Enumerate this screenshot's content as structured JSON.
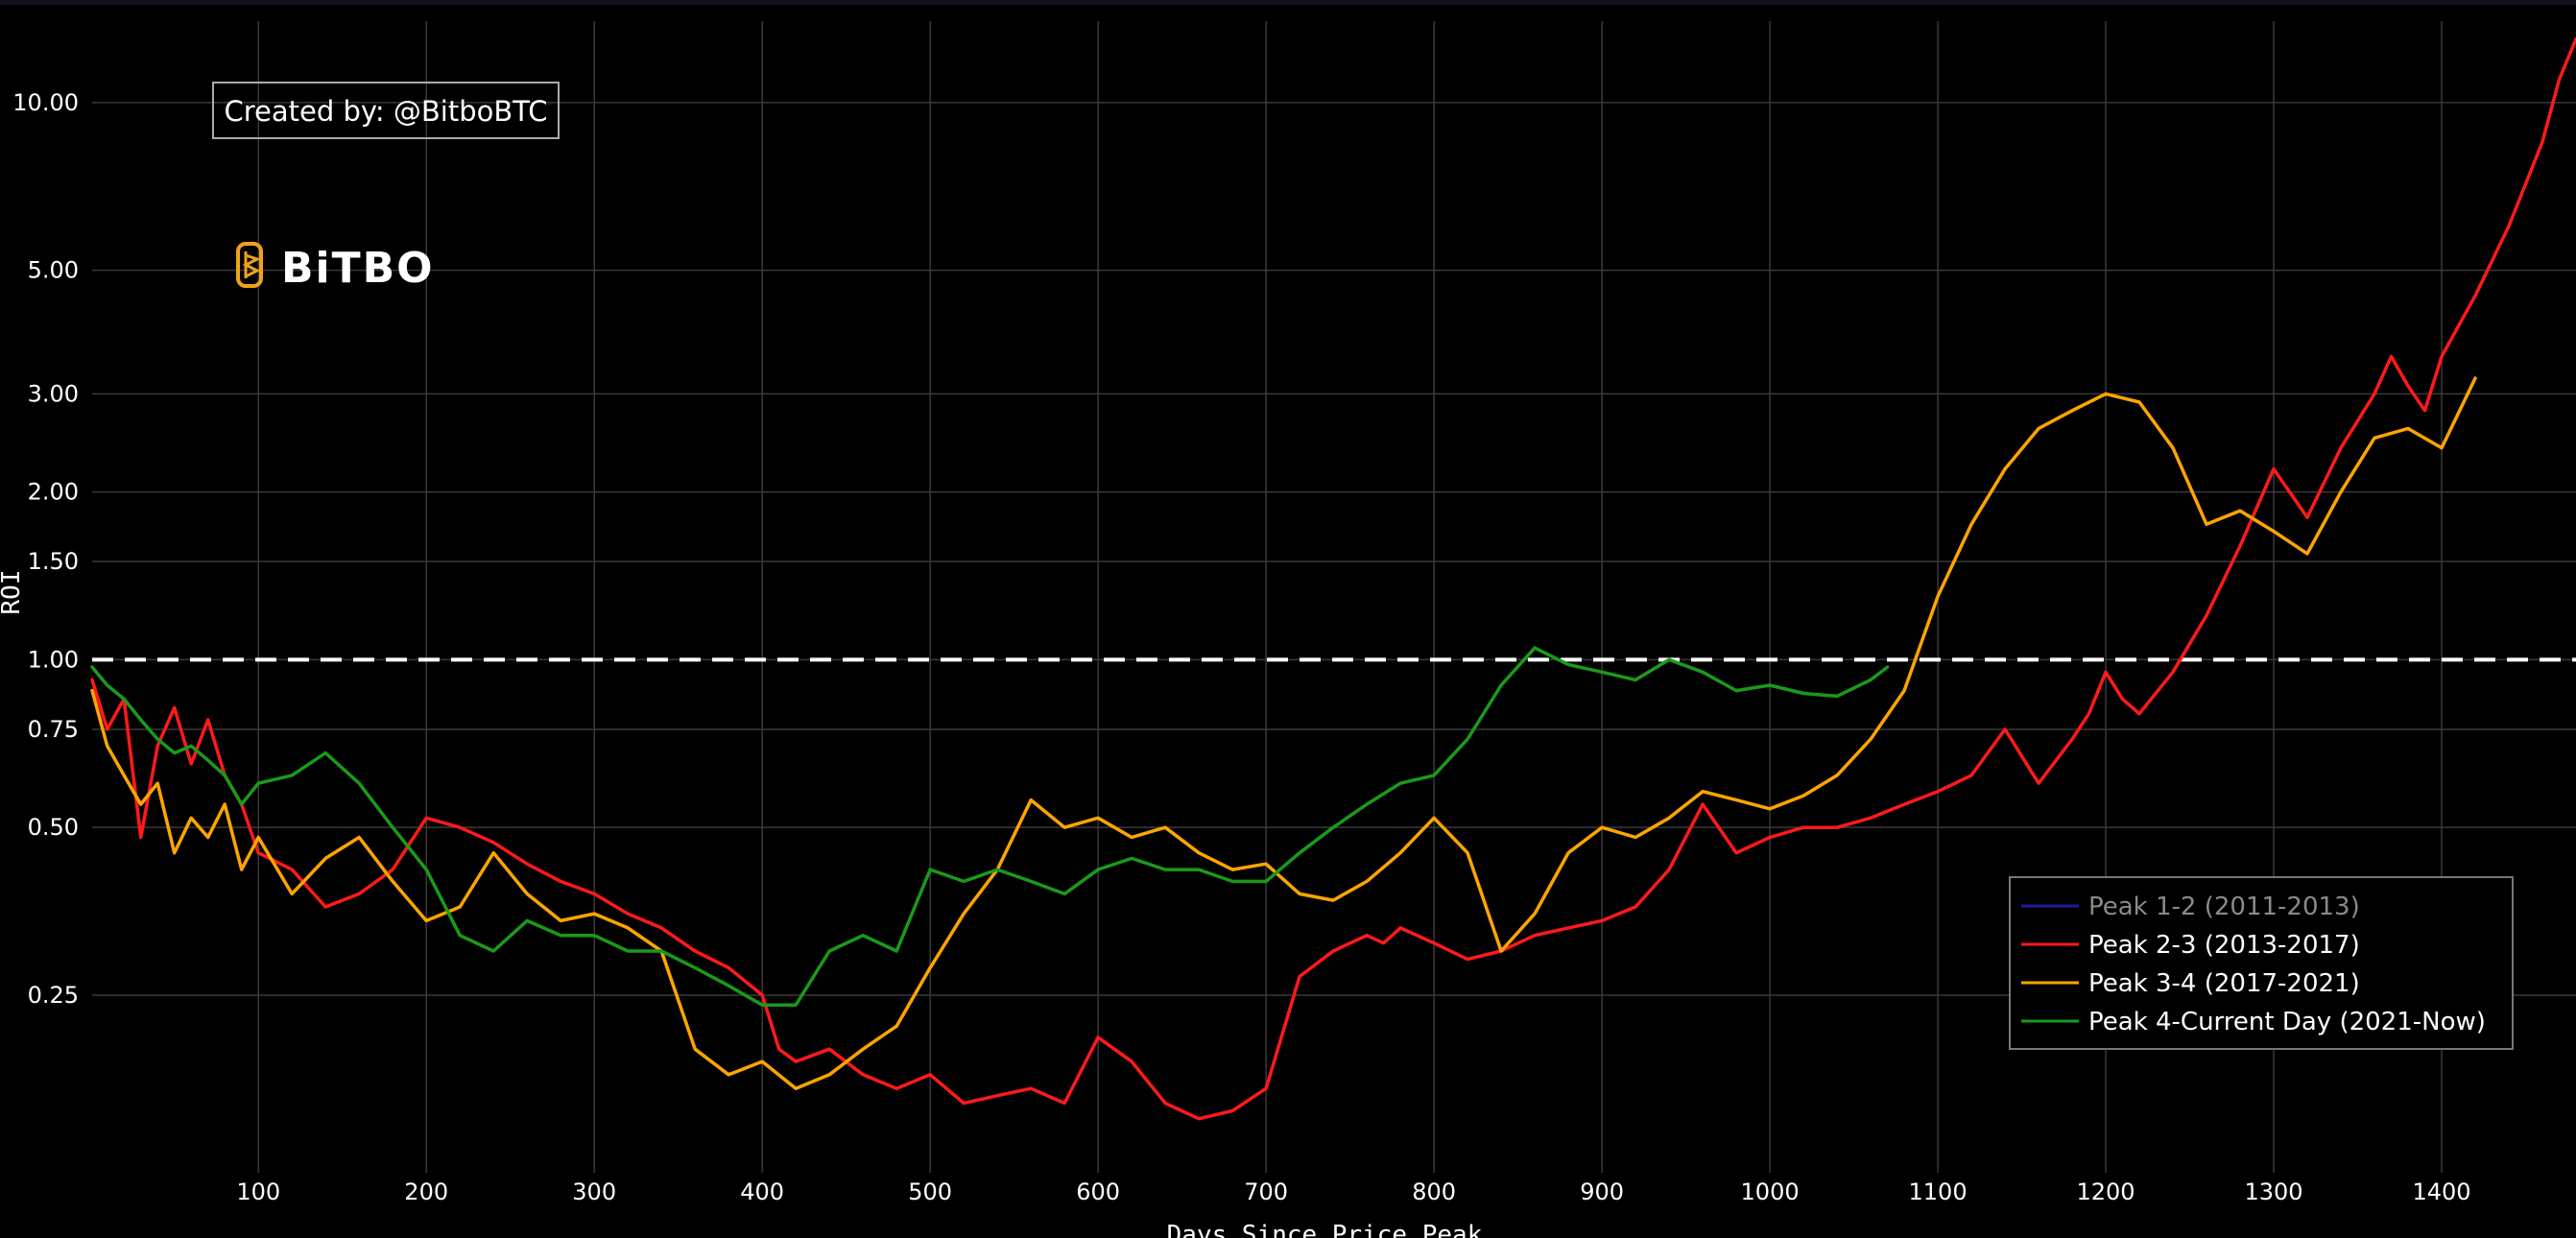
{
  "credit": "Created by: @BitboBTC",
  "logo_text": "BiTBO",
  "chart_data": {
    "type": "line",
    "xlabel": "Days Since Price Peak",
    "ylabel": "ROI",
    "x_ticks": [
      100,
      200,
      300,
      400,
      500,
      600,
      700,
      800,
      900,
      1000,
      1100,
      1200,
      1300,
      1400
    ],
    "y_ticks": [
      {
        "value": 0.25,
        "label": "0.25"
      },
      {
        "value": 0.5,
        "label": "0.50"
      },
      {
        "value": 0.75,
        "label": "0.75"
      },
      {
        "value": 1.0,
        "label": "1.00"
      },
      {
        "value": 1.5,
        "label": "1.50"
      },
      {
        "value": 2.0,
        "label": "2.00"
      },
      {
        "value": 3.0,
        "label": "3.00"
      },
      {
        "value": 5.0,
        "label": "5.00"
      },
      {
        "value": 10.0,
        "label": "10.00"
      }
    ],
    "xlim": [
      1,
      1480
    ],
    "ylim": [
      0.12,
      14
    ],
    "yscale": "log",
    "grid": true,
    "reference_line": {
      "y": 1.0,
      "style": "dashed",
      "color": "#ffffff"
    },
    "legend_position": "bottom-right",
    "series": [
      {
        "name": "Peak 1-2 (2011-2013)",
        "color": "#1c1ca0",
        "hidden": true,
        "x": [],
        "y": []
      },
      {
        "name": "Peak 2-3 (2013-2017)",
        "color": "#ff1a1a",
        "x": [
          1,
          10,
          20,
          30,
          40,
          50,
          60,
          70,
          80,
          90,
          100,
          120,
          140,
          160,
          180,
          200,
          220,
          240,
          260,
          280,
          300,
          320,
          340,
          360,
          380,
          400,
          410,
          420,
          440,
          460,
          480,
          500,
          520,
          540,
          560,
          580,
          600,
          620,
          640,
          660,
          680,
          700,
          720,
          740,
          760,
          770,
          780,
          800,
          820,
          840,
          860,
          880,
          900,
          920,
          940,
          960,
          980,
          1000,
          1020,
          1040,
          1060,
          1080,
          1100,
          1120,
          1140,
          1160,
          1180,
          1190,
          1200,
          1210,
          1220,
          1240,
          1260,
          1280,
          1300,
          1320,
          1340,
          1360,
          1370,
          1380,
          1390,
          1400,
          1420,
          1440,
          1460,
          1470,
          1480
        ],
        "y": [
          0.92,
          0.75,
          0.85,
          0.48,
          0.7,
          0.82,
          0.65,
          0.78,
          0.62,
          0.55,
          0.45,
          0.42,
          0.36,
          0.38,
          0.42,
          0.52,
          0.5,
          0.47,
          0.43,
          0.4,
          0.38,
          0.35,
          0.33,
          0.3,
          0.28,
          0.25,
          0.2,
          0.19,
          0.2,
          0.18,
          0.17,
          0.18,
          0.16,
          0.165,
          0.17,
          0.16,
          0.21,
          0.19,
          0.16,
          0.15,
          0.155,
          0.17,
          0.27,
          0.3,
          0.32,
          0.31,
          0.33,
          0.31,
          0.29,
          0.3,
          0.32,
          0.33,
          0.34,
          0.36,
          0.42,
          0.55,
          0.45,
          0.48,
          0.5,
          0.5,
          0.52,
          0.55,
          0.58,
          0.62,
          0.75,
          0.6,
          0.72,
          0.8,
          0.95,
          0.85,
          0.8,
          0.95,
          1.2,
          1.6,
          2.2,
          1.8,
          2.4,
          3.0,
          3.5,
          3.1,
          2.8,
          3.5,
          4.5,
          6.0,
          8.5,
          11.0,
          13.0
        ]
      },
      {
        "name": "Peak 3-4 (2017-2021)",
        "color": "#ffa500",
        "x": [
          1,
          10,
          20,
          30,
          40,
          50,
          60,
          70,
          80,
          90,
          100,
          120,
          140,
          160,
          180,
          200,
          220,
          240,
          260,
          280,
          300,
          320,
          340,
          360,
          380,
          400,
          420,
          440,
          460,
          480,
          500,
          520,
          540,
          560,
          580,
          600,
          620,
          640,
          660,
          680,
          700,
          720,
          740,
          760,
          780,
          800,
          820,
          840,
          860,
          880,
          900,
          920,
          940,
          960,
          980,
          1000,
          1020,
          1040,
          1060,
          1080,
          1100,
          1120,
          1140,
          1160,
          1180,
          1200,
          1220,
          1240,
          1260,
          1280,
          1300,
          1320,
          1340,
          1360,
          1380,
          1400,
          1420
        ],
        "y": [
          0.88,
          0.7,
          0.62,
          0.55,
          0.6,
          0.45,
          0.52,
          0.48,
          0.55,
          0.42,
          0.48,
          0.38,
          0.44,
          0.48,
          0.4,
          0.34,
          0.36,
          0.45,
          0.38,
          0.34,
          0.35,
          0.33,
          0.3,
          0.2,
          0.18,
          0.19,
          0.17,
          0.18,
          0.2,
          0.22,
          0.28,
          0.35,
          0.42,
          0.56,
          0.5,
          0.52,
          0.48,
          0.5,
          0.45,
          0.42,
          0.43,
          0.38,
          0.37,
          0.4,
          0.45,
          0.52,
          0.45,
          0.3,
          0.35,
          0.45,
          0.5,
          0.48,
          0.52,
          0.58,
          0.56,
          0.54,
          0.57,
          0.62,
          0.72,
          0.88,
          1.3,
          1.75,
          2.2,
          2.6,
          2.8,
          3.0,
          2.9,
          2.4,
          1.75,
          1.85,
          1.7,
          1.55,
          2.0,
          2.5,
          2.6,
          2.4,
          3.2
        ]
      },
      {
        "name": "Peak 4-Current Day (2021-Now)",
        "color": "#1a9a1a",
        "x": [
          1,
          10,
          20,
          30,
          40,
          50,
          60,
          70,
          80,
          90,
          100,
          120,
          140,
          160,
          180,
          200,
          220,
          240,
          260,
          280,
          300,
          320,
          340,
          360,
          380,
          400,
          420,
          440,
          460,
          480,
          500,
          520,
          540,
          560,
          580,
          600,
          620,
          640,
          660,
          680,
          700,
          720,
          740,
          760,
          780,
          800,
          820,
          840,
          860,
          880,
          900,
          920,
          940,
          960,
          980,
          1000,
          1020,
          1040,
          1060,
          1070
        ],
        "y": [
          0.97,
          0.9,
          0.85,
          0.78,
          0.72,
          0.68,
          0.7,
          0.66,
          0.62,
          0.55,
          0.6,
          0.62,
          0.68,
          0.6,
          0.5,
          0.42,
          0.32,
          0.3,
          0.34,
          0.32,
          0.32,
          0.3,
          0.3,
          0.28,
          0.26,
          0.24,
          0.24,
          0.3,
          0.32,
          0.3,
          0.42,
          0.4,
          0.42,
          0.4,
          0.38,
          0.42,
          0.44,
          0.42,
          0.42,
          0.4,
          0.4,
          0.45,
          0.5,
          0.55,
          0.6,
          0.62,
          0.72,
          0.9,
          1.05,
          0.98,
          0.95,
          0.92,
          1.0,
          0.95,
          0.88,
          0.9,
          0.87,
          0.86,
          0.92,
          0.97
        ]
      }
    ]
  }
}
